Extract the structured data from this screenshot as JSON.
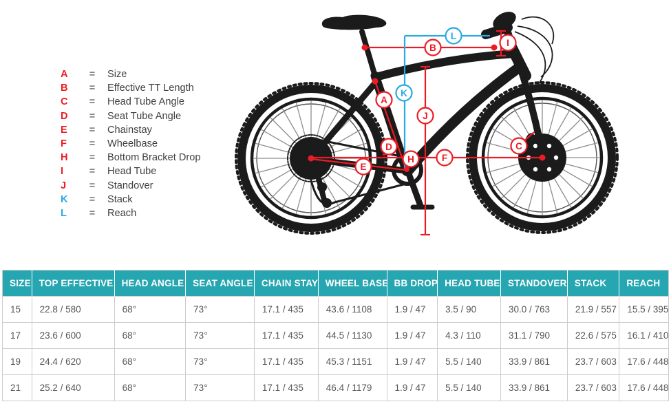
{
  "colors": {
    "annotation_red": "#EC1C24",
    "annotation_blue": "#27AAE1",
    "table_header_bg": "#26A6B0",
    "table_header_text": "#FFFFFF",
    "table_body_text": "#55565A",
    "table_border": "#CCCCCC",
    "bike_silhouette": "#1B1B1B",
    "legend_text": "#414042"
  },
  "diagram": {
    "legend": [
      {
        "letter": "A",
        "equals": "=",
        "label": "Size",
        "color": "red"
      },
      {
        "letter": "B",
        "equals": "=",
        "label": "Effective TT Length",
        "color": "red"
      },
      {
        "letter": "C",
        "equals": "=",
        "label": "Head Tube Angle",
        "color": "red"
      },
      {
        "letter": "D",
        "equals": "=",
        "label": "Seat Tube Angle",
        "color": "red"
      },
      {
        "letter": "E",
        "equals": "=",
        "label": "Chainstay",
        "color": "red"
      },
      {
        "letter": "F",
        "equals": "=",
        "label": "Wheelbase",
        "color": "red"
      },
      {
        "letter": "H",
        "equals": "=",
        "label": "Bottom Bracket Drop",
        "color": "red"
      },
      {
        "letter": "I",
        "equals": "=",
        "label": "Head Tube",
        "color": "red"
      },
      {
        "letter": "J",
        "equals": "=",
        "label": "Standover",
        "color": "red"
      },
      {
        "letter": "K",
        "equals": "=",
        "label": "Stack",
        "color": "blue"
      },
      {
        "letter": "L",
        "equals": "=",
        "label": "Reach",
        "color": "blue"
      }
    ]
  },
  "table": {
    "headers": [
      "SIZE",
      "TOP EFFECTIVE",
      "HEAD ANGLE",
      "SEAT ANGLE",
      "CHAIN STAY",
      "WHEEL BASE",
      "BB DROP",
      "HEAD TUBE",
      "STANDOVER",
      "STACK",
      "REACH"
    ],
    "rows": [
      [
        "15",
        "22.8 / 580",
        "68°",
        "73°",
        "17.1 / 435",
        "43.6 / 1108",
        "1.9 / 47",
        "3.5 / 90",
        "30.0 / 763",
        "21.9 / 557",
        "15.5 / 395"
      ],
      [
        "17",
        "23.6 / 600",
        "68°",
        "73°",
        "17.1 / 435",
        "44.5 / 1130",
        "1.9 / 47",
        "4.3 / 110",
        "31.1 / 790",
        "22.6 / 575",
        "16.1 / 410"
      ],
      [
        "19",
        "24.4 / 620",
        "68°",
        "73°",
        "17.1 / 435",
        "45.3 / 1151",
        "1.9 / 47",
        "5.5 / 140",
        "33.9 / 861",
        "23.7 / 603",
        "17.6 / 448"
      ],
      [
        "21",
        "25.2 / 640",
        "68°",
        "73°",
        "17.1 / 435",
        "46.4 / 1179",
        "1.9 / 47",
        "5.5 / 140",
        "33.9 / 861",
        "23.7 / 603",
        "17.6 / 448"
      ]
    ]
  }
}
